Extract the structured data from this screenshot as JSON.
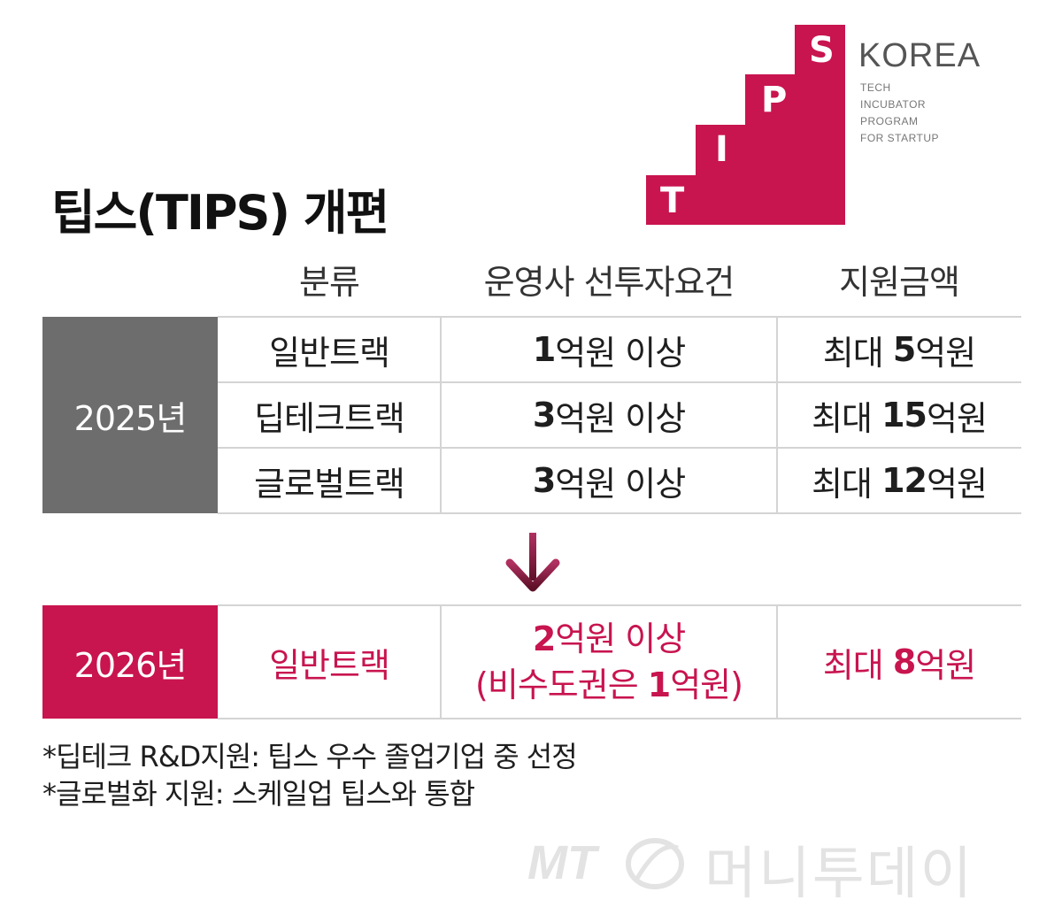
{
  "title": "팁스(TIPS) 개편",
  "logo": {
    "letters": [
      "T",
      "I",
      "P",
      "S"
    ],
    "korea": "KOREA",
    "subtitle_lines": [
      "TECH",
      "INCUBATOR",
      "PROGRAM",
      "FOR STARTUP"
    ],
    "color": "#c8144f"
  },
  "headers": {
    "category": "분류",
    "requirement": "운영사 선투자요건",
    "amount": "지원금액"
  },
  "rows_2025": {
    "year": "2025년",
    "year_color": "#6d6d6d",
    "rows": [
      {
        "category": "일반트랙",
        "req_num": "1",
        "req_rest": "억원 이상",
        "amt_prefix": "최대 ",
        "amt_num": "5",
        "amt_rest": "억원"
      },
      {
        "category": "딥테크트랙",
        "req_num": "3",
        "req_rest": "억원 이상",
        "amt_prefix": "최대 ",
        "amt_num": "15",
        "amt_rest": "억원"
      },
      {
        "category": "글로벌트랙",
        "req_num": "3",
        "req_rest": "억원 이상",
        "amt_prefix": "최대 ",
        "amt_num": "12",
        "amt_rest": "억원"
      }
    ]
  },
  "rows_2026": {
    "year": "2026년",
    "year_color": "#c8144f",
    "category": "일반트랙",
    "req_num": "2",
    "req_rest": "억원 이상",
    "req_line2_prefix": "(비수도권은 ",
    "req_line2_num": "1",
    "req_line2_rest": "억원)",
    "amt_prefix": "최대 ",
    "amt_num": "8",
    "amt_rest": "억원"
  },
  "arrow_color": "#8a1a3c",
  "notes": [
    "*딥테크 R&D지원: 팁스 우수 졸업기업 중 선정",
    "*글로벌화 지원: 스케일업 팁스와 통합"
  ],
  "watermark": {
    "mt": "MT",
    "name": "머니투데이"
  }
}
